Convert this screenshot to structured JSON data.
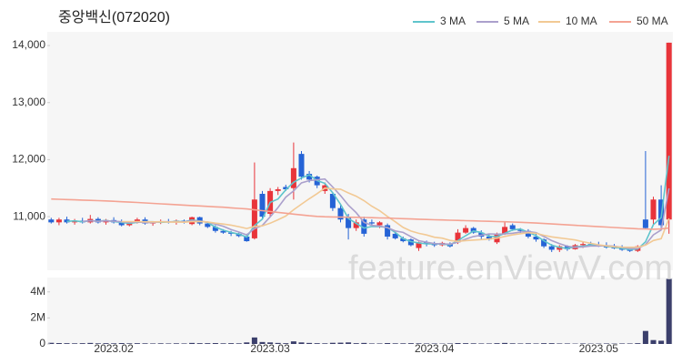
{
  "chart_data": {
    "type": "candlestick",
    "title": "중앙백신(072020)",
    "watermark": "feature.enViewV.com",
    "up_color": "#e8343a",
    "down_color": "#2563d6",
    "volume_color": "#3b3f6b",
    "grid": false,
    "legend": "top-right",
    "categories": [
      null,
      null,
      null,
      null,
      null,
      null,
      null,
      null,
      "2023.02",
      null,
      null,
      null,
      null,
      null,
      null,
      null,
      null,
      null,
      null,
      null,
      null,
      null,
      null,
      null,
      null,
      null,
      null,
      null,
      "2023.03",
      null,
      null,
      null,
      null,
      null,
      null,
      null,
      null,
      null,
      null,
      null,
      null,
      null,
      null,
      null,
      null,
      null,
      null,
      null,
      null,
      "2023.04",
      null,
      null,
      null,
      null,
      null,
      null,
      null,
      null,
      null,
      null,
      null,
      null,
      null,
      null,
      null,
      null,
      null,
      null,
      null,
      null,
      "2023.05",
      null,
      null,
      null,
      null,
      null,
      null,
      null,
      null,
      null
    ],
    "ylim": [
      10060,
      14240
    ],
    "yticks": [
      {
        "value": 11000,
        "label": "11,000"
      },
      {
        "value": 12000,
        "label": "12,000"
      },
      {
        "value": 13000,
        "label": "13,000"
      },
      {
        "value": 14000,
        "label": "14,000"
      }
    ],
    "volume_ylim": [
      0,
      5100000
    ],
    "volume_yticks": [
      0,
      {
        "value": 2000000,
        "label": "2M"
      },
      {
        "value": 4000000,
        "label": "4M"
      }
    ],
    "ohlc": [
      [
        10950,
        10980,
        10880,
        10900
      ],
      [
        10900,
        10980,
        10850,
        10950
      ],
      [
        10950,
        11000,
        10880,
        10900
      ],
      [
        10900,
        10960,
        10860,
        10930
      ],
      [
        10930,
        10980,
        10880,
        10900
      ],
      [
        10900,
        11030,
        10880,
        10960
      ],
      [
        10960,
        10990,
        10880,
        10900
      ],
      [
        10900,
        10960,
        10860,
        10940
      ],
      [
        10940,
        10990,
        10880,
        10900
      ],
      [
        10900,
        10950,
        10830,
        10850
      ],
      [
        10850,
        10920,
        10830,
        10900
      ],
      [
        10900,
        10980,
        10880,
        10950
      ],
      [
        10950,
        10990,
        10860,
        10880
      ],
      [
        10880,
        10920,
        10840,
        10900
      ],
      [
        10900,
        10950,
        10870,
        10920
      ],
      [
        10920,
        10960,
        10880,
        10900
      ],
      [
        10900,
        10950,
        10860,
        10930
      ],
      [
        10930,
        10950,
        10880,
        10900
      ],
      [
        10870,
        11000,
        10850,
        10990
      ],
      [
        10990,
        11000,
        10850,
        10880
      ],
      [
        10880,
        10900,
        10800,
        10820
      ],
      [
        10820,
        10850,
        10720,
        10750
      ],
      [
        10750,
        10780,
        10700,
        10720
      ],
      [
        10720,
        10750,
        10660,
        10700
      ],
      [
        10700,
        10720,
        10640,
        10660
      ],
      [
        10650,
        10700,
        10560,
        10570
      ],
      [
        10620,
        11950,
        10600,
        11300
      ],
      [
        11400,
        11450,
        10950,
        11000
      ],
      [
        11050,
        11500,
        11000,
        11450
      ],
      [
        11450,
        11520,
        11380,
        11480
      ],
      [
        11520,
        11560,
        11450,
        11480
      ],
      [
        11500,
        12300,
        11300,
        11850
      ],
      [
        12100,
        12150,
        11650,
        11700
      ],
      [
        11750,
        11800,
        11600,
        11650
      ],
      [
        11700,
        11720,
        11500,
        11550
      ],
      [
        11450,
        11600,
        11400,
        11550
      ],
      [
        11400,
        11420,
        11100,
        11150
      ],
      [
        11150,
        11200,
        10900,
        10950
      ],
      [
        11000,
        11050,
        10600,
        10800
      ],
      [
        10800,
        10950,
        10750,
        10900
      ],
      [
        10950,
        11000,
        10650,
        10700
      ],
      [
        10900,
        10950,
        10850,
        10880
      ],
      [
        10850,
        10920,
        10800,
        10900
      ],
      [
        10850,
        10880,
        10600,
        10650
      ],
      [
        10700,
        10720,
        10600,
        10620
      ],
      [
        10620,
        10650,
        10550,
        10570
      ],
      [
        10600,
        10620,
        10480,
        10500
      ],
      [
        10450,
        10560,
        10400,
        10550
      ],
      [
        10550,
        10580,
        10480,
        10520
      ],
      [
        10520,
        10560,
        10470,
        10500
      ],
      [
        10500,
        10560,
        10480,
        10540
      ],
      [
        10520,
        10550,
        10460,
        10480
      ],
      [
        10550,
        10780,
        10520,
        10720
      ],
      [
        10720,
        10850,
        10700,
        10800
      ],
      [
        10800,
        10820,
        10700,
        10720
      ],
      [
        10720,
        10760,
        10600,
        10650
      ],
      [
        10650,
        10700,
        10580,
        10600
      ],
      [
        10550,
        10720,
        10520,
        10700
      ],
      [
        10700,
        10900,
        10680,
        10820
      ],
      [
        10850,
        10880,
        10750,
        10780
      ],
      [
        10780,
        10800,
        10700,
        10750
      ],
      [
        10750,
        10780,
        10620,
        10650
      ],
      [
        10650,
        10700,
        10560,
        10600
      ],
      [
        10600,
        10620,
        10450,
        10480
      ],
      [
        10480,
        10520,
        10380,
        10420
      ],
      [
        10420,
        10500,
        10380,
        10480
      ],
      [
        10480,
        10500,
        10400,
        10430
      ],
      [
        10430,
        10520,
        10420,
        10500
      ],
      [
        10500,
        10560,
        10450,
        10520
      ],
      [
        10520,
        10560,
        10480,
        10500
      ],
      [
        10500,
        10560,
        10470,
        10480
      ],
      [
        10480,
        10550,
        10440,
        10460
      ],
      [
        10460,
        10520,
        10430,
        10450
      ],
      [
        10450,
        10500,
        10400,
        10420
      ],
      [
        10420,
        10450,
        10380,
        10400
      ],
      [
        10400,
        10500,
        10380,
        10480
      ],
      [
        10950,
        12150,
        10780,
        10800
      ],
      [
        10950,
        11350,
        10850,
        11300
      ],
      [
        11300,
        11550,
        10800,
        10850
      ],
      [
        10950,
        14050,
        10700,
        14050
      ]
    ],
    "volume": [
      90000,
      70000,
      60000,
      50000,
      60000,
      80000,
      50000,
      60000,
      50000,
      70000,
      50000,
      60000,
      50000,
      40000,
      50000,
      40000,
      50000,
      40000,
      80000,
      60000,
      60000,
      70000,
      50000,
      60000,
      50000,
      120000,
      500000,
      150000,
      120000,
      80000,
      60000,
      200000,
      120000,
      80000,
      60000,
      50000,
      90000,
      100000,
      120000,
      60000,
      80000,
      40000,
      40000,
      70000,
      50000,
      50000,
      60000,
      50000,
      40000,
      40000,
      30000,
      40000,
      70000,
      60000,
      50000,
      40000,
      40000,
      60000,
      80000,
      50000,
      40000,
      50000,
      40000,
      60000,
      60000,
      40000,
      40000,
      30000,
      40000,
      30000,
      30000,
      40000,
      30000,
      40000,
      40000,
      60000,
      1000000,
      300000,
      250000,
      5000000
    ],
    "series": [
      {
        "name": "3 MA",
        "color": "#5fc4cc",
        "values": [
          null,
          null,
          10917,
          10927,
          10910,
          10930,
          10920,
          10933,
          10913,
          10897,
          10883,
          10900,
          10910,
          10910,
          10900,
          10907,
          10917,
          10910,
          10940,
          10923,
          10897,
          10817,
          10763,
          10723,
          10693,
          10643,
          10843,
          10957,
          11250,
          11310,
          11470,
          11603,
          11677,
          11733,
          11633,
          11583,
          11417,
          11217,
          10967,
          10883,
          10800,
          10827,
          10827,
          10810,
          10723,
          10613,
          10563,
          10540,
          10523,
          10523,
          10520,
          10507,
          10580,
          10667,
          10747,
          10723,
          10657,
          10650,
          10707,
          10767,
          10783,
          10727,
          10667,
          10577,
          10500,
          10460,
          10443,
          10470,
          10483,
          10507,
          10500,
          10480,
          10463,
          10443,
          10423,
          10433,
          10560,
          10860,
          10983,
          12067
        ]
      },
      {
        "name": "5 MA",
        "color": "#aba0cc",
        "values": [
          null,
          null,
          null,
          null,
          10916,
          10928,
          10918,
          10926,
          10920,
          10910,
          10898,
          10908,
          10896,
          10896,
          10910,
          10910,
          10906,
          10910,
          10928,
          10920,
          10904,
          10868,
          10832,
          10774,
          10730,
          10680,
          10790,
          10846,
          10996,
          11160,
          11342,
          11452,
          11592,
          11632,
          11646,
          11660,
          11520,
          11370,
          11200,
          11070,
          10900,
          10846,
          10836,
          10806,
          10750,
          10724,
          10648,
          10578,
          10552,
          10528,
          10522,
          10518,
          10552,
          10608,
          10652,
          10674,
          10698,
          10694,
          10698,
          10710,
          10730,
          10740,
          10720,
          10652,
          10580,
          10526,
          10482,
          10462,
          10470,
          10486,
          10486,
          10492,
          10482,
          10462,
          10442,
          10442,
          10510,
          10680,
          10766,
          11496
        ]
      },
      {
        "name": "10 MA",
        "color": "#f2c994",
        "values": [
          null,
          null,
          null,
          null,
          null,
          null,
          null,
          null,
          null,
          10913,
          10913,
          10913,
          10911,
          10908,
          10910,
          10904,
          10907,
          10903,
          10912,
          10915,
          10907,
          10887,
          10871,
          10851,
          10825,
          10792,
          10829,
          10839,
          10885,
          10945,
          11011,
          11121,
          11219,
          11314,
          11403,
          11501,
          11486,
          11481,
          11416,
          11358,
          11280,
          11183,
          11103,
          11003,
          10910,
          10812,
          10747,
          10707,
          10679,
          10639,
          10623,
          10583,
          10565,
          10580,
          10590,
          10598,
          10608,
          10623,
          10653,
          10681,
          10702,
          10719,
          10707,
          10675,
          10645,
          10628,
          10611,
          10591,
          10561,
          10533,
          10506,
          10487,
          10472,
          10466,
          10464,
          10464,
          10501,
          10581,
          10614,
          10969
        ]
      },
      {
        "name": "50 MA",
        "color": "#f4a393",
        "values": [
          11310,
          11305,
          11300,
          11295,
          11290,
          11285,
          11280,
          11275,
          11270,
          11262,
          11255,
          11248,
          11240,
          11232,
          11225,
          11218,
          11210,
          11202,
          11195,
          11188,
          11180,
          11172,
          11165,
          11155,
          11145,
          11135,
          11120,
          11105,
          11090,
          11075,
          11060,
          11045,
          11030,
          11015,
          11005,
          10998,
          10995,
          10992,
          10990,
          10988,
          10985,
          10982,
          10978,
          10975,
          10970,
          10965,
          10960,
          10955,
          10950,
          10946,
          10942,
          10938,
          10934,
          10930,
          10926,
          10922,
          10918,
          10914,
          10910,
          10905,
          10900,
          10895,
          10888,
          10880,
          10872,
          10864,
          10856,
          10848,
          10840,
          10832,
          10825,
          10818,
          10810,
          10802,
          10795,
          10788,
          10782,
          10780,
          10785,
          10800
        ]
      }
    ]
  }
}
